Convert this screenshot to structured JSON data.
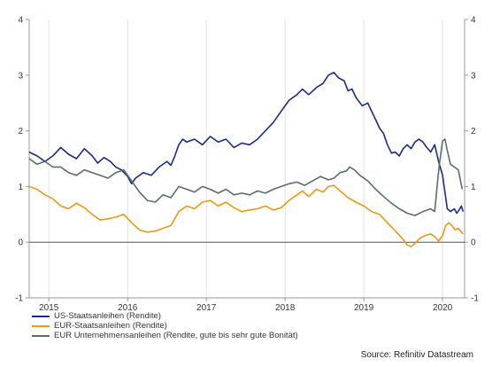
{
  "chart_data": {
    "type": "line",
    "ylim": [
      -1,
      4
    ],
    "yticks": [
      -1,
      0,
      1,
      2,
      3,
      4
    ],
    "xlim": [
      2014.75,
      2020.28
    ],
    "xticks": [
      2015,
      2016,
      2017,
      2018,
      2019,
      2020
    ],
    "grid": "vertical",
    "zero_line": true,
    "legend_placement": "bottom-left",
    "source": "Source: Refinitiv Datastream",
    "series": [
      {
        "name": "US-Staatsanleihen (Rendite)",
        "color": "#1a2b8c",
        "points": [
          [
            2014.75,
            1.62
          ],
          [
            2014.85,
            1.55
          ],
          [
            2014.95,
            1.45
          ],
          [
            2015.05,
            1.55
          ],
          [
            2015.15,
            1.7
          ],
          [
            2015.25,
            1.58
          ],
          [
            2015.35,
            1.5
          ],
          [
            2015.45,
            1.68
          ],
          [
            2015.55,
            1.55
          ],
          [
            2015.62,
            1.42
          ],
          [
            2015.7,
            1.52
          ],
          [
            2015.78,
            1.45
          ],
          [
            2015.85,
            1.35
          ],
          [
            2015.92,
            1.3
          ],
          [
            2016.0,
            1.18
          ],
          [
            2016.05,
            1.05
          ],
          [
            2016.1,
            1.15
          ],
          [
            2016.2,
            1.25
          ],
          [
            2016.3,
            1.2
          ],
          [
            2016.4,
            1.35
          ],
          [
            2016.5,
            1.45
          ],
          [
            2016.55,
            1.38
          ],
          [
            2016.6,
            1.55
          ],
          [
            2016.65,
            1.75
          ],
          [
            2016.7,
            1.85
          ],
          [
            2016.75,
            1.8
          ],
          [
            2016.85,
            1.85
          ],
          [
            2016.95,
            1.75
          ],
          [
            2017.05,
            1.9
          ],
          [
            2017.15,
            1.8
          ],
          [
            2017.25,
            1.85
          ],
          [
            2017.35,
            1.7
          ],
          [
            2017.45,
            1.78
          ],
          [
            2017.55,
            1.75
          ],
          [
            2017.65,
            1.85
          ],
          [
            2017.75,
            2.0
          ],
          [
            2017.85,
            2.15
          ],
          [
            2017.95,
            2.35
          ],
          [
            2018.05,
            2.55
          ],
          [
            2018.15,
            2.65
          ],
          [
            2018.22,
            2.75
          ],
          [
            2018.3,
            2.65
          ],
          [
            2018.4,
            2.78
          ],
          [
            2018.48,
            2.85
          ],
          [
            2018.55,
            3.0
          ],
          [
            2018.62,
            3.05
          ],
          [
            2018.68,
            2.95
          ],
          [
            2018.75,
            2.9
          ],
          [
            2018.8,
            2.72
          ],
          [
            2018.85,
            2.75
          ],
          [
            2018.9,
            2.6
          ],
          [
            2018.98,
            2.45
          ],
          [
            2019.05,
            2.5
          ],
          [
            2019.1,
            2.35
          ],
          [
            2019.15,
            2.2
          ],
          [
            2019.2,
            2.05
          ],
          [
            2019.25,
            1.95
          ],
          [
            2019.3,
            1.75
          ],
          [
            2019.35,
            1.6
          ],
          [
            2019.4,
            1.62
          ],
          [
            2019.45,
            1.55
          ],
          [
            2019.5,
            1.68
          ],
          [
            2019.55,
            1.75
          ],
          [
            2019.6,
            1.68
          ],
          [
            2019.65,
            1.8
          ],
          [
            2019.7,
            1.85
          ],
          [
            2019.75,
            1.8
          ],
          [
            2019.8,
            1.7
          ],
          [
            2019.85,
            1.62
          ],
          [
            2019.9,
            1.75
          ],
          [
            2019.95,
            1.45
          ],
          [
            2020.0,
            1.2
          ],
          [
            2020.03,
            0.9
          ],
          [
            2020.06,
            0.6
          ],
          [
            2020.1,
            0.55
          ],
          [
            2020.15,
            0.6
          ],
          [
            2020.18,
            0.52
          ],
          [
            2020.21,
            0.58
          ],
          [
            2020.24,
            0.65
          ],
          [
            2020.26,
            0.55
          ]
        ]
      },
      {
        "name": "EUR-Staatsanleihen (Rendite)",
        "color": "#f0980e",
        "points": [
          [
            2014.75,
            1.0
          ],
          [
            2014.85,
            0.95
          ],
          [
            2014.95,
            0.85
          ],
          [
            2015.05,
            0.78
          ],
          [
            2015.15,
            0.65
          ],
          [
            2015.25,
            0.6
          ],
          [
            2015.35,
            0.7
          ],
          [
            2015.45,
            0.62
          ],
          [
            2015.55,
            0.5
          ],
          [
            2015.65,
            0.4
          ],
          [
            2015.75,
            0.42
          ],
          [
            2015.85,
            0.45
          ],
          [
            2015.95,
            0.5
          ],
          [
            2016.05,
            0.35
          ],
          [
            2016.15,
            0.22
          ],
          [
            2016.25,
            0.18
          ],
          [
            2016.35,
            0.2
          ],
          [
            2016.45,
            0.25
          ],
          [
            2016.55,
            0.3
          ],
          [
            2016.65,
            0.55
          ],
          [
            2016.75,
            0.65
          ],
          [
            2016.85,
            0.6
          ],
          [
            2016.95,
            0.72
          ],
          [
            2017.05,
            0.75
          ],
          [
            2017.15,
            0.65
          ],
          [
            2017.25,
            0.72
          ],
          [
            2017.35,
            0.62
          ],
          [
            2017.45,
            0.55
          ],
          [
            2017.55,
            0.58
          ],
          [
            2017.65,
            0.6
          ],
          [
            2017.75,
            0.65
          ],
          [
            2017.85,
            0.58
          ],
          [
            2017.95,
            0.62
          ],
          [
            2018.05,
            0.75
          ],
          [
            2018.15,
            0.85
          ],
          [
            2018.22,
            0.92
          ],
          [
            2018.3,
            0.82
          ],
          [
            2018.4,
            0.95
          ],
          [
            2018.48,
            0.9
          ],
          [
            2018.55,
            1.0
          ],
          [
            2018.62,
            1.02
          ],
          [
            2018.7,
            0.92
          ],
          [
            2018.8,
            0.8
          ],
          [
            2018.9,
            0.72
          ],
          [
            2019.0,
            0.65
          ],
          [
            2019.1,
            0.55
          ],
          [
            2019.2,
            0.5
          ],
          [
            2019.3,
            0.35
          ],
          [
            2019.4,
            0.2
          ],
          [
            2019.5,
            0.05
          ],
          [
            2019.55,
            -0.05
          ],
          [
            2019.6,
            -0.08
          ],
          [
            2019.65,
            -0.02
          ],
          [
            2019.72,
            0.08
          ],
          [
            2019.78,
            0.12
          ],
          [
            2019.85,
            0.15
          ],
          [
            2019.9,
            0.1
          ],
          [
            2019.95,
            0.02
          ],
          [
            2020.0,
            0.12
          ],
          [
            2020.04,
            0.3
          ],
          [
            2020.08,
            0.35
          ],
          [
            2020.12,
            0.3
          ],
          [
            2020.16,
            0.22
          ],
          [
            2020.2,
            0.25
          ],
          [
            2020.24,
            0.18
          ],
          [
            2020.26,
            0.15
          ]
        ]
      },
      {
        "name": "EUR Unternehmensanleihen (Rendite, gute bis sehr gute Bonität)",
        "color": "#5a6e68",
        "points": [
          [
            2014.75,
            1.5
          ],
          [
            2014.85,
            1.4
          ],
          [
            2014.95,
            1.45
          ],
          [
            2015.05,
            1.35
          ],
          [
            2015.15,
            1.35
          ],
          [
            2015.25,
            1.25
          ],
          [
            2015.35,
            1.2
          ],
          [
            2015.45,
            1.3
          ],
          [
            2015.55,
            1.25
          ],
          [
            2015.65,
            1.2
          ],
          [
            2015.75,
            1.15
          ],
          [
            2015.85,
            1.25
          ],
          [
            2015.95,
            1.3
          ],
          [
            2016.05,
            1.1
          ],
          [
            2016.15,
            0.9
          ],
          [
            2016.25,
            0.75
          ],
          [
            2016.35,
            0.72
          ],
          [
            2016.45,
            0.85
          ],
          [
            2016.55,
            0.8
          ],
          [
            2016.65,
            1.0
          ],
          [
            2016.75,
            0.95
          ],
          [
            2016.85,
            0.9
          ],
          [
            2016.95,
            1.0
          ],
          [
            2017.05,
            0.95
          ],
          [
            2017.15,
            0.88
          ],
          [
            2017.25,
            0.95
          ],
          [
            2017.35,
            0.85
          ],
          [
            2017.45,
            0.88
          ],
          [
            2017.55,
            0.85
          ],
          [
            2017.65,
            0.92
          ],
          [
            2017.75,
            0.88
          ],
          [
            2017.85,
            0.95
          ],
          [
            2017.95,
            1.0
          ],
          [
            2018.05,
            1.05
          ],
          [
            2018.15,
            1.08
          ],
          [
            2018.25,
            1.02
          ],
          [
            2018.35,
            1.1
          ],
          [
            2018.45,
            1.18
          ],
          [
            2018.55,
            1.12
          ],
          [
            2018.62,
            1.15
          ],
          [
            2018.7,
            1.25
          ],
          [
            2018.78,
            1.28
          ],
          [
            2018.82,
            1.35
          ],
          [
            2018.88,
            1.3
          ],
          [
            2018.95,
            1.2
          ],
          [
            2019.05,
            1.1
          ],
          [
            2019.15,
            0.95
          ],
          [
            2019.25,
            0.82
          ],
          [
            2019.35,
            0.7
          ],
          [
            2019.45,
            0.6
          ],
          [
            2019.55,
            0.52
          ],
          [
            2019.65,
            0.48
          ],
          [
            2019.75,
            0.55
          ],
          [
            2019.85,
            0.6
          ],
          [
            2019.9,
            0.55
          ],
          [
            2019.93,
            1.0
          ],
          [
            2019.96,
            1.4
          ],
          [
            2020.0,
            1.82
          ],
          [
            2020.03,
            1.85
          ],
          [
            2020.06,
            1.65
          ],
          [
            2020.1,
            1.4
          ],
          [
            2020.15,
            1.35
          ],
          [
            2020.2,
            1.3
          ],
          [
            2020.25,
            0.95
          ]
        ]
      }
    ]
  }
}
